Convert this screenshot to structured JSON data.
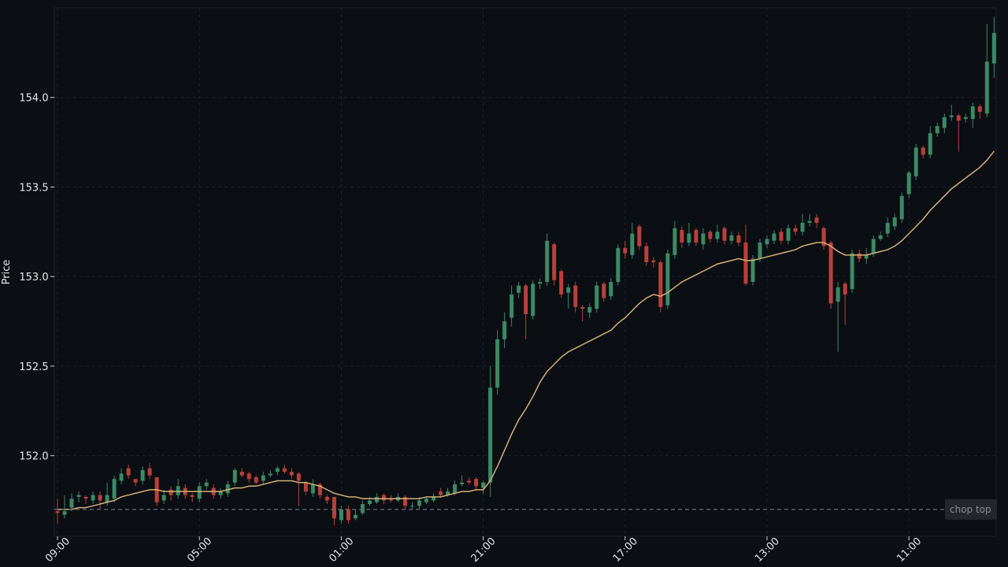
{
  "chart_data": {
    "type": "candlestick",
    "ylabel": "Price",
    "ylim": [
      151.55,
      154.5
    ],
    "yticks": [
      152.0,
      152.5,
      153.0,
      153.5,
      154.0
    ],
    "ytick_labels": [
      "152.0",
      "152.5",
      "153.0",
      "153.5",
      "154.0"
    ],
    "xticks": [
      0,
      20,
      40,
      60,
      80,
      100,
      120
    ],
    "xtick_labels": [
      "09:00",
      "05:00",
      "01:00",
      "21:00",
      "17:00",
      "13:00",
      "11:00"
    ],
    "x_count": 133,
    "grid": true,
    "up_color": "#3b8a65",
    "down_color": "#b8413a",
    "ma_color": "#d2b07a",
    "reference_line": {
      "label": "chop top",
      "value": 151.7
    },
    "candles": [
      [
        151.69,
        151.68,
        151.76,
        151.62
      ],
      [
        151.67,
        151.69,
        151.78,
        151.65
      ],
      [
        151.71,
        151.76,
        151.79,
        151.69
      ],
      [
        151.77,
        151.78,
        151.8,
        151.74
      ],
      [
        151.77,
        151.76,
        151.78,
        151.73
      ],
      [
        151.75,
        151.78,
        151.8,
        151.73
      ],
      [
        151.78,
        151.75,
        151.8,
        151.7
      ],
      [
        151.74,
        151.78,
        151.85,
        151.72
      ],
      [
        151.76,
        151.87,
        151.89,
        151.74
      ],
      [
        151.86,
        151.9,
        151.93,
        151.84
      ],
      [
        151.93,
        151.89,
        151.95,
        151.87
      ],
      [
        151.87,
        151.85,
        151.87,
        151.83
      ],
      [
        151.86,
        151.92,
        151.94,
        151.84
      ],
      [
        151.93,
        151.89,
        151.96,
        151.87
      ],
      [
        151.88,
        151.74,
        151.88,
        151.72
      ],
      [
        151.75,
        151.78,
        151.81,
        151.73
      ],
      [
        151.81,
        151.78,
        151.83,
        151.75
      ],
      [
        151.78,
        151.83,
        151.87,
        151.76
      ],
      [
        151.82,
        151.78,
        151.84,
        151.76
      ],
      [
        151.78,
        151.77,
        151.79,
        151.74
      ],
      [
        151.76,
        151.83,
        151.85,
        151.74
      ],
      [
        151.83,
        151.85,
        151.87,
        151.81
      ],
      [
        151.82,
        151.78,
        151.84,
        151.76
      ],
      [
        151.78,
        151.8,
        151.82,
        151.76
      ],
      [
        151.79,
        151.84,
        151.86,
        151.77
      ],
      [
        151.85,
        151.92,
        151.93,
        151.83
      ],
      [
        151.91,
        151.89,
        151.93,
        151.88
      ],
      [
        151.9,
        151.87,
        151.91,
        151.85
      ],
      [
        151.88,
        151.85,
        151.89,
        151.84
      ],
      [
        151.86,
        151.89,
        151.91,
        151.84
      ],
      [
        151.89,
        151.9,
        151.92,
        151.88
      ],
      [
        151.91,
        151.93,
        151.94,
        151.89
      ],
      [
        151.93,
        151.91,
        151.95,
        151.9
      ],
      [
        151.91,
        151.89,
        151.93,
        151.87
      ],
      [
        151.9,
        151.86,
        151.91,
        151.72
      ],
      [
        151.85,
        151.8,
        151.86,
        151.78
      ],
      [
        151.79,
        151.84,
        151.87,
        151.77
      ],
      [
        151.84,
        151.78,
        151.85,
        151.76
      ],
      [
        151.77,
        151.75,
        151.78,
        151.73
      ],
      [
        151.77,
        151.65,
        151.77,
        151.61
      ],
      [
        151.64,
        151.7,
        151.72,
        151.62
      ],
      [
        151.7,
        151.64,
        151.72,
        151.62
      ],
      [
        151.65,
        151.67,
        151.7,
        151.64
      ],
      [
        151.68,
        151.73,
        151.75,
        151.67
      ],
      [
        151.73,
        151.75,
        151.77,
        151.72
      ],
      [
        151.74,
        151.77,
        151.79,
        151.73
      ],
      [
        151.78,
        151.75,
        151.79,
        151.73
      ],
      [
        151.76,
        151.75,
        151.78,
        151.74
      ],
      [
        151.75,
        151.77,
        151.79,
        151.74
      ],
      [
        151.77,
        151.72,
        151.78,
        151.7
      ],
      [
        151.72,
        151.72,
        151.74,
        151.7
      ],
      [
        151.72,
        151.75,
        151.77,
        151.7
      ],
      [
        151.74,
        151.76,
        151.77,
        151.73
      ],
      [
        151.75,
        151.77,
        151.79,
        151.74
      ],
      [
        151.8,
        151.78,
        151.82,
        151.77
      ],
      [
        151.78,
        151.8,
        151.82,
        151.77
      ],
      [
        151.79,
        151.84,
        151.86,
        151.78
      ],
      [
        151.84,
        151.85,
        151.89,
        151.83
      ],
      [
        151.86,
        151.85,
        151.88,
        151.84
      ],
      [
        151.87,
        151.83,
        151.88,
        151.81
      ],
      [
        151.82,
        151.85,
        151.86,
        151.79
      ],
      [
        151.85,
        152.38,
        152.5,
        151.77
      ],
      [
        152.38,
        152.65,
        152.7,
        152.34
      ],
      [
        152.65,
        152.75,
        152.8,
        152.6
      ],
      [
        152.77,
        152.9,
        152.95,
        152.72
      ],
      [
        152.91,
        152.95,
        152.97,
        152.88
      ],
      [
        152.95,
        152.79,
        152.96,
        152.65
      ],
      [
        152.78,
        152.96,
        152.98,
        152.76
      ],
      [
        152.96,
        152.97,
        152.99,
        152.93
      ],
      [
        152.97,
        153.2,
        153.24,
        152.95
      ],
      [
        153.18,
        152.98,
        153.19,
        152.95
      ],
      [
        153.03,
        152.9,
        153.04,
        152.88
      ],
      [
        152.91,
        152.94,
        152.96,
        152.82
      ],
      [
        152.95,
        152.83,
        152.97,
        152.8
      ],
      [
        152.83,
        152.82,
        152.84,
        152.75
      ],
      [
        152.8,
        152.83,
        152.85,
        152.77
      ],
      [
        152.82,
        152.95,
        152.97,
        152.8
      ],
      [
        152.96,
        152.88,
        152.97,
        152.86
      ],
      [
        152.89,
        152.97,
        152.99,
        152.87
      ],
      [
        152.97,
        153.16,
        153.18,
        152.95
      ],
      [
        153.16,
        153.13,
        153.2,
        153.1
      ],
      [
        153.12,
        153.24,
        153.3,
        153.1
      ],
      [
        153.28,
        153.17,
        153.29,
        153.15
      ],
      [
        153.17,
        153.08,
        153.19,
        153.06
      ],
      [
        153.09,
        153.08,
        153.11,
        153.05
      ],
      [
        153.08,
        152.83,
        153.09,
        152.8
      ],
      [
        152.84,
        153.13,
        153.15,
        152.82
      ],
      [
        153.12,
        153.27,
        153.31,
        153.1
      ],
      [
        153.26,
        153.19,
        153.28,
        153.16
      ],
      [
        153.19,
        153.24,
        153.3,
        153.17
      ],
      [
        153.26,
        153.19,
        153.27,
        153.17
      ],
      [
        153.18,
        153.24,
        153.27,
        153.15
      ],
      [
        153.25,
        153.21,
        153.26,
        153.19
      ],
      [
        153.21,
        153.25,
        153.29,
        153.19
      ],
      [
        153.27,
        153.2,
        153.28,
        153.18
      ],
      [
        153.2,
        153.23,
        153.25,
        153.18
      ],
      [
        153.23,
        153.19,
        153.25,
        153.17
      ],
      [
        153.19,
        152.96,
        153.29,
        152.95
      ],
      [
        152.97,
        153.1,
        153.12,
        152.95
      ],
      [
        153.1,
        153.19,
        153.21,
        153.08
      ],
      [
        153.18,
        153.21,
        153.23,
        153.16
      ],
      [
        153.2,
        153.24,
        153.26,
        153.18
      ],
      [
        153.25,
        153.2,
        153.27,
        153.18
      ],
      [
        153.2,
        153.27,
        153.29,
        153.18
      ],
      [
        153.27,
        153.25,
        153.29,
        153.23
      ],
      [
        153.25,
        153.3,
        153.35,
        153.23
      ],
      [
        153.3,
        153.31,
        153.35,
        153.28
      ],
      [
        153.33,
        153.3,
        153.35,
        153.27
      ],
      [
        153.27,
        153.17,
        153.28,
        153.15
      ],
      [
        153.19,
        152.85,
        153.2,
        152.82
      ],
      [
        152.86,
        152.94,
        152.97,
        152.58
      ],
      [
        152.96,
        152.9,
        152.97,
        152.73
      ],
      [
        152.93,
        153.13,
        153.15,
        152.91
      ],
      [
        153.13,
        153.1,
        153.15,
        153.08
      ],
      [
        153.1,
        153.12,
        153.16,
        153.07
      ],
      [
        153.13,
        153.21,
        153.23,
        153.11
      ],
      [
        153.21,
        153.23,
        153.25,
        153.2
      ],
      [
        153.24,
        153.3,
        153.33,
        153.22
      ],
      [
        153.28,
        153.33,
        153.35,
        153.26
      ],
      [
        153.32,
        153.45,
        153.47,
        153.3
      ],
      [
        153.46,
        153.58,
        153.59,
        153.44
      ],
      [
        153.56,
        153.72,
        153.74,
        153.54
      ],
      [
        153.72,
        153.68,
        153.73,
        153.66
      ],
      [
        153.68,
        153.8,
        153.84,
        153.66
      ],
      [
        153.8,
        153.84,
        153.86,
        153.78
      ],
      [
        153.83,
        153.89,
        153.91,
        153.8
      ],
      [
        153.89,
        153.9,
        153.96,
        153.87
      ],
      [
        153.9,
        153.87,
        153.91,
        153.7
      ],
      [
        153.88,
        153.89,
        153.91,
        153.86
      ],
      [
        153.88,
        153.95,
        153.97,
        153.83
      ],
      [
        153.95,
        153.92,
        153.96,
        153.88
      ],
      [
        153.91,
        154.2,
        154.41,
        153.89
      ],
      [
        154.19,
        154.36,
        154.45,
        154.11
      ]
    ],
    "moving_average": [
      151.7,
      151.7,
      151.7,
      151.71,
      151.71,
      151.72,
      151.73,
      151.74,
      151.75,
      151.77,
      151.78,
      151.79,
      151.8,
      151.81,
      151.81,
      151.8,
      151.8,
      151.8,
      151.8,
      151.8,
      151.8,
      151.8,
      151.8,
      151.8,
      151.81,
      151.82,
      151.82,
      151.83,
      151.83,
      151.84,
      151.85,
      151.86,
      151.86,
      151.86,
      151.85,
      151.85,
      151.84,
      151.83,
      151.81,
      151.79,
      151.78,
      151.77,
      151.77,
      151.76,
      151.76,
      151.76,
      151.76,
      151.76,
      151.76,
      151.76,
      151.76,
      151.76,
      151.77,
      151.77,
      151.77,
      151.78,
      151.79,
      151.8,
      151.8,
      151.81,
      151.81,
      151.86,
      151.94,
      152.03,
      152.12,
      152.2,
      152.26,
      152.33,
      152.41,
      152.47,
      152.51,
      152.55,
      152.58,
      152.6,
      152.62,
      152.64,
      152.66,
      152.68,
      152.7,
      152.74,
      152.77,
      152.81,
      152.85,
      152.88,
      152.9,
      152.89,
      152.91,
      152.94,
      152.97,
      152.99,
      153.01,
      153.03,
      153.05,
      153.07,
      153.08,
      153.09,
      153.1,
      153.09,
      153.09,
      153.1,
      153.11,
      153.12,
      153.13,
      153.14,
      153.15,
      153.17,
      153.18,
      153.19,
      153.19,
      153.17,
      153.14,
      153.12,
      153.12,
      153.12,
      153.12,
      153.13,
      153.14,
      153.15,
      153.17,
      153.2,
      153.24,
      153.28,
      153.32,
      153.37,
      153.41,
      153.45,
      153.49,
      153.52,
      153.55,
      153.58,
      153.61,
      153.65,
      153.7
    ]
  }
}
